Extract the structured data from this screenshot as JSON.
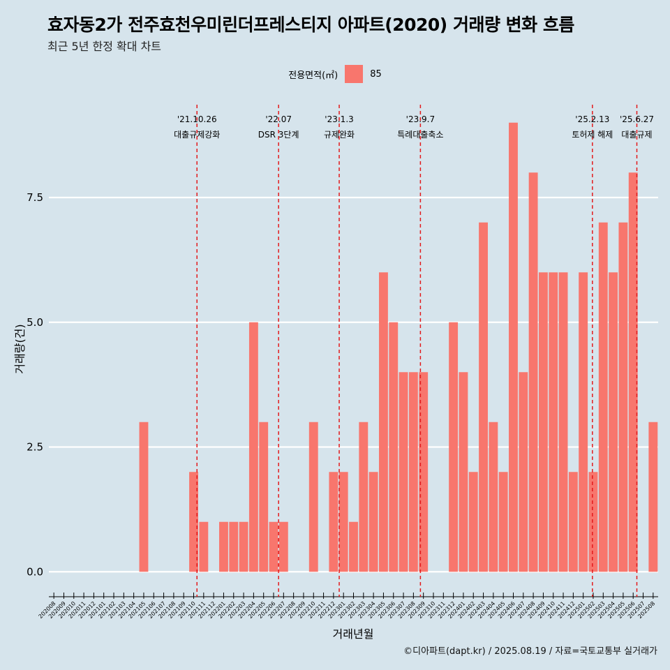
{
  "title": "효자동2가 전주효천우미린더프레스티지 아파트(2020) 거래량 변화 흐름",
  "subtitle": "최근 5년 한정 확대 차트",
  "caption": "©디아파트(dapt.kr) / 2025.08.19 / 자료=국토교통부 실거래가",
  "legend": {
    "title": "전용면적(㎡)",
    "items": [
      {
        "label": "85",
        "color": "#f8766d"
      }
    ]
  },
  "chart_data": {
    "type": "bar",
    "xlabel": "거래년월",
    "ylabel": "거래량(건)",
    "ylim": [
      -0.5,
      9.5
    ],
    "yticks": [
      0,
      2.5,
      5,
      7.5
    ],
    "ytick_labels": [
      "0.0",
      "2.5",
      "5.0",
      "7.5"
    ],
    "grid": "horizontal",
    "legend_position": "top",
    "bar_color": "#f8766d",
    "categories": [
      "202008",
      "202009",
      "202010",
      "202011",
      "202012",
      "202101",
      "202102",
      "202103",
      "202104",
      "202105",
      "202106",
      "202107",
      "202108",
      "202109",
      "202110",
      "202111",
      "202112",
      "202201",
      "202202",
      "202203",
      "202204",
      "202205",
      "202206",
      "202207",
      "202208",
      "202209",
      "202210",
      "202211",
      "202212",
      "202301",
      "202302",
      "202303",
      "202304",
      "202305",
      "202306",
      "202307",
      "202308",
      "202309",
      "202310",
      "202311",
      "202312",
      "202401",
      "202402",
      "202403",
      "202404",
      "202405",
      "202406",
      "202407",
      "202408",
      "202409",
      "202410",
      "202411",
      "202412",
      "202501",
      "202502",
      "202503",
      "202504",
      "202505",
      "202506",
      "202507",
      "202508"
    ],
    "series": [
      {
        "name": "85",
        "values": [
          0,
          0,
          0,
          0,
          0,
          0,
          0,
          0,
          0,
          3,
          0,
          0,
          0,
          0,
          2,
          1,
          0,
          1,
          1,
          1,
          5,
          3,
          1,
          1,
          0,
          0,
          3,
          0,
          2,
          2,
          1,
          3,
          2,
          6,
          5,
          4,
          4,
          4,
          0,
          0,
          5,
          4,
          2,
          7,
          3,
          2,
          9,
          4,
          8,
          6,
          6,
          6,
          2,
          6,
          2,
          7,
          6,
          7,
          8,
          0,
          3
        ]
      }
    ],
    "events": [
      {
        "date": "'21.10.26",
        "label": "대출규제강화",
        "month": "202110",
        "offset": 0.83
      },
      {
        "date": "'22.07",
        "label": "DSR 3단계",
        "month": "202207",
        "offset": 0.0
      },
      {
        "date": "'23.1.3",
        "label": "규제완화",
        "month": "202301",
        "offset": 0.07
      },
      {
        "date": "'23.9.7",
        "label": "특례대출축소",
        "month": "202309",
        "offset": 0.2
      },
      {
        "date": "'25.2.13",
        "label": "토허제 해제",
        "month": "202502",
        "offset": 0.42
      },
      {
        "date": "'25.6.27",
        "label": "대출규제",
        "month": "202506",
        "offset": 0.87
      }
    ]
  }
}
